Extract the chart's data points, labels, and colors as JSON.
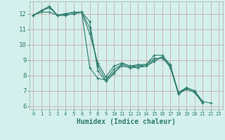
{
  "xlabel": "Humidex (Indice chaleur)",
  "bg_color": "#d4f0ec",
  "grid_color": "#b8dbd5",
  "line_color": "#2e7d6e",
  "series": [
    [
      11.9,
      12.2,
      12.5,
      11.9,
      11.9,
      12.0,
      12.1,
      11.5,
      8.3,
      7.6,
      8.1,
      8.8,
      8.6,
      8.7,
      8.7,
      9.3,
      9.3,
      8.7,
      6.8,
      7.2,
      7.0,
      6.3,
      6.2
    ],
    [
      11.9,
      12.2,
      12.4,
      11.9,
      12.0,
      12.1,
      12.1,
      11.1,
      8.6,
      7.7,
      8.4,
      8.7,
      8.5,
      8.5,
      8.6,
      8.9,
      9.2,
      8.5,
      6.8,
      7.1,
      6.9,
      6.2,
      null
    ],
    [
      11.9,
      12.2,
      12.4,
      11.9,
      12.0,
      12.1,
      12.1,
      10.7,
      8.8,
      7.9,
      8.6,
      8.8,
      8.6,
      8.6,
      8.7,
      9.1,
      9.1,
      8.6,
      6.9,
      7.2,
      7.0,
      6.3,
      null
    ],
    [
      11.9,
      12.1,
      12.1,
      11.9,
      11.9,
      12.0,
      12.1,
      8.5,
      7.8,
      7.7,
      8.2,
      8.6,
      8.5,
      8.6,
      8.6,
      9.0,
      9.2,
      8.6,
      6.8,
      7.1,
      6.9,
      6.2,
      null
    ]
  ],
  "xlim": [
    -0.5,
    23.5
  ],
  "ylim": [
    5.8,
    12.8
  ],
  "xticks": [
    0,
    1,
    2,
    3,
    4,
    5,
    6,
    7,
    8,
    9,
    10,
    11,
    12,
    13,
    14,
    15,
    16,
    17,
    18,
    19,
    20,
    21,
    22,
    23
  ],
  "yticks": [
    6,
    7,
    8,
    9,
    10,
    11,
    12
  ]
}
